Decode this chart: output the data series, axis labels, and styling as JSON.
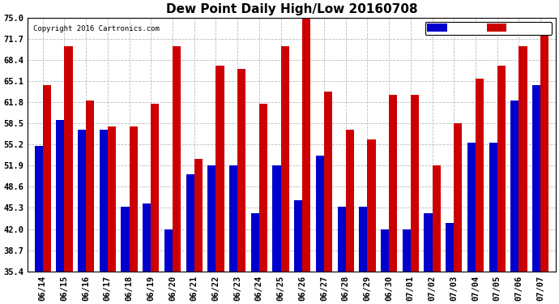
{
  "title": "Dew Point Daily High/Low 20160708",
  "copyright": "Copyright 2016 Cartronics.com",
  "dates": [
    "06/14",
    "06/15",
    "06/16",
    "06/17",
    "06/18",
    "06/19",
    "06/20",
    "06/21",
    "06/22",
    "06/23",
    "06/24",
    "06/25",
    "06/26",
    "06/27",
    "06/28",
    "06/29",
    "06/30",
    "07/01",
    "07/02",
    "07/03",
    "07/04",
    "07/05",
    "07/06",
    "07/07"
  ],
  "low": [
    55.0,
    59.0,
    57.5,
    57.5,
    45.5,
    46.0,
    42.0,
    50.5,
    52.0,
    52.0,
    44.5,
    52.0,
    46.5,
    53.5,
    45.5,
    45.5,
    42.0,
    42.0,
    44.5,
    43.0,
    55.5,
    55.5,
    62.0,
    64.5
  ],
  "high": [
    64.5,
    70.5,
    62.0,
    58.0,
    58.0,
    61.5,
    70.5,
    53.0,
    67.5,
    67.0,
    61.5,
    70.5,
    75.0,
    63.5,
    57.5,
    56.0,
    63.0,
    63.0,
    52.0,
    58.5,
    65.5,
    67.5,
    70.5,
    73.0
  ],
  "low_color": "#0000cc",
  "high_color": "#cc0000",
  "bg_color": "#ffffff",
  "grid_color": "#bbbbbb",
  "ybase": 35.4,
  "ylim": [
    35.4,
    75.0
  ],
  "yticks": [
    35.4,
    38.7,
    42.0,
    45.3,
    48.6,
    51.9,
    55.2,
    58.5,
    61.8,
    65.1,
    68.4,
    71.7,
    75.0
  ],
  "title_fontsize": 11,
  "tick_fontsize": 7.5,
  "bar_width": 0.38
}
